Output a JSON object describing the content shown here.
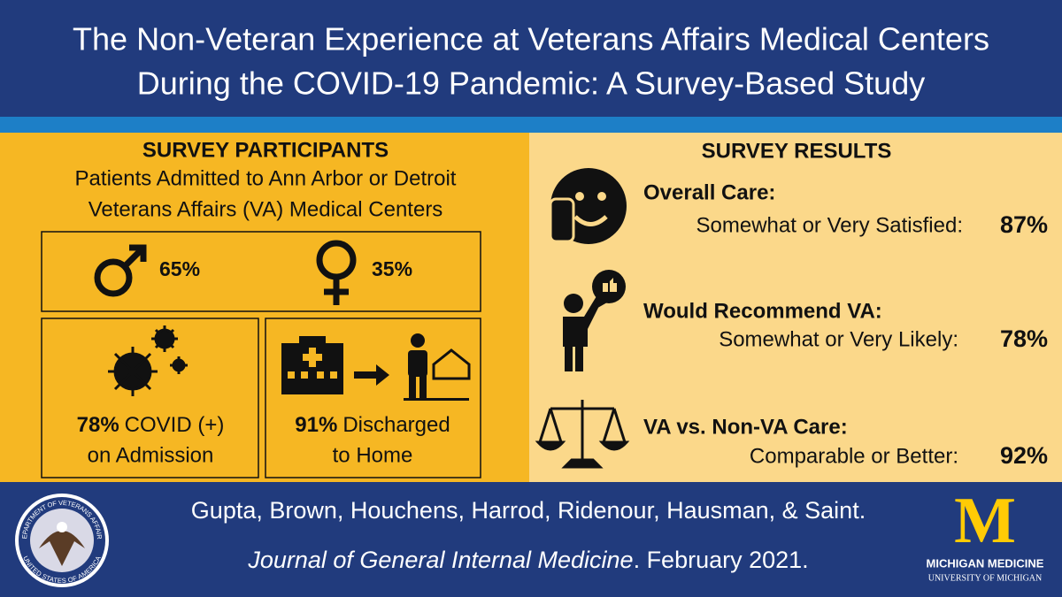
{
  "header": {
    "title_lines": [
      "The Non-Veteran Experience at Veterans Affairs Medical Centers",
      "During the COVID-19 Pandemic: A Survey-Based Study"
    ]
  },
  "participants": {
    "heading": "SURVEY PARTICIPANTS",
    "subtitle_lines": [
      "Patients Admitted to Ann Arbor or Detroit",
      "Veterans Affairs (VA) Medical Centers"
    ],
    "male": "65%",
    "female": "35%",
    "covid": {
      "value": "78%",
      "lines": [
        "COVID (+)",
        "on Admission"
      ]
    },
    "discharge": {
      "value": "91%",
      "lines": [
        "Discharged",
        "to Home"
      ]
    }
  },
  "results": {
    "heading": "SURVEY RESULTS",
    "items": [
      {
        "label": "Overall Care:",
        "detail": "Somewhat or Very Satisfied:",
        "value": "87%"
      },
      {
        "label": "Would Recommend VA:",
        "detail": "Somewhat or Very Likely:",
        "value": "78%"
      },
      {
        "label": "VA vs. Non-VA Care:",
        "detail": "Comparable or Better:",
        "value": "92%"
      }
    ]
  },
  "footer": {
    "authors": "Gupta, Brown, Houchens, Harrod, Ridenour, Hausman, & Saint.",
    "journal": "Journal of General Internal Medicine",
    "date": ". February 2021.",
    "logo": {
      "letter": "M",
      "name": "MICHIGAN MEDICINE",
      "sub": "UNIVERSITY OF MICHIGAN"
    },
    "seal": {
      "top": "DEPARTMENT OF VETERANS AFFAIRS",
      "bottom": "UNITED STATES OF AMERICA"
    }
  }
}
